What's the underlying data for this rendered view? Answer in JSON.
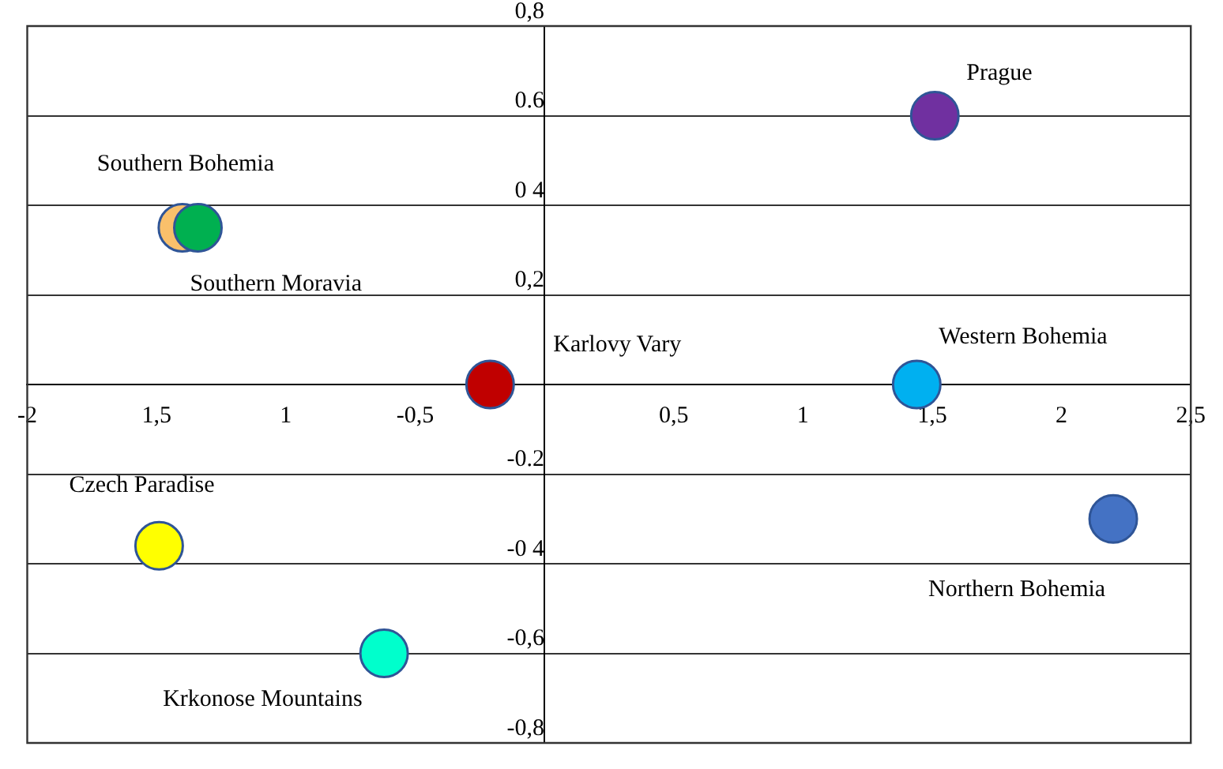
{
  "chart_data": {
    "type": "scatter",
    "marker": "circle",
    "grid": "y",
    "xlim": [
      -2,
      2.5
    ],
    "ylim": [
      -0.8,
      0.8
    ],
    "xticks": [
      {
        "value": -2,
        "label": "-2"
      },
      {
        "value": -1.5,
        "label": "1,5"
      },
      {
        "value": -1,
        "label": "1"
      },
      {
        "value": -0.5,
        "label": "-0,5"
      },
      {
        "value": 0,
        "label": null
      },
      {
        "value": 0.5,
        "label": "0,5"
      },
      {
        "value": 1,
        "label": "1"
      },
      {
        "value": 1.5,
        "label": "1,5"
      },
      {
        "value": 2,
        "label": "2"
      },
      {
        "value": 2.5,
        "label": "2,5"
      }
    ],
    "yticks": [
      {
        "value": -0.8,
        "label": "-0,8"
      },
      {
        "value": -0.6,
        "label": "-0,6"
      },
      {
        "value": -0.4,
        "label": "-0 4"
      },
      {
        "value": -0.2,
        "label": "-0.2"
      },
      {
        "value": 0,
        "label": null
      },
      {
        "value": 0.2,
        "label": "0,2"
      },
      {
        "value": 0.4,
        "label": "0 4"
      },
      {
        "value": 0.6,
        "label": "0.6"
      },
      {
        "value": 0.8,
        "label": "0,8"
      }
    ],
    "series": [
      {
        "name": "Prague",
        "color": "#7030a0",
        "x": [
          1.51
        ],
        "values": [
          0.6
        ]
      },
      {
        "name": "Southern Bohemia",
        "color": "#f9c06b",
        "x": [
          -1.4
        ],
        "values": [
          0.35
        ]
      },
      {
        "name": "Southern Moravia",
        "color": "#00b050",
        "x": [
          -1.34
        ],
        "values": [
          0.35
        ]
      },
      {
        "name": "Karlovy Vary",
        "color": "#c00000",
        "x": [
          -0.21
        ],
        "values": [
          0
        ]
      },
      {
        "name": "Western Bohemia",
        "color": "#00b0f0",
        "x": [
          1.44
        ],
        "values": [
          0
        ]
      },
      {
        "name": "Czech Paradise",
        "color": "#ffff00",
        "x": [
          -1.49
        ],
        "values": [
          -0.36
        ]
      },
      {
        "name": "Northern Bohemia",
        "color": "#4472c4",
        "x": [
          2.2
        ],
        "values": [
          -0.3
        ]
      },
      {
        "name": "Krkonose Mountains",
        "color": "#00ffcc",
        "x": [
          -0.62
        ],
        "values": [
          -0.6
        ]
      }
    ]
  }
}
